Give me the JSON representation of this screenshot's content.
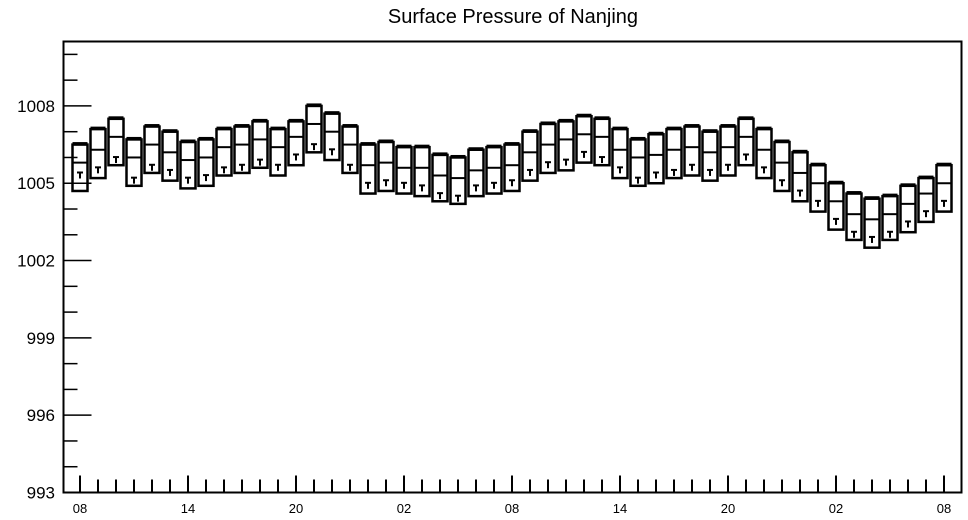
{
  "chart_data": {
    "type": "boxplot",
    "title": "Surface Pressure of Nanjing",
    "xlabel": "",
    "ylabel": "",
    "ylim": [
      993,
      1010.5
    ],
    "y_ticks": [
      "993",
      "996",
      "999",
      "1002",
      "1005",
      "1008"
    ],
    "x_tick_labels": [
      "08",
      "14",
      "20",
      "02",
      "08",
      "14",
      "20",
      "02",
      "08"
    ],
    "grid": false,
    "series": [
      {
        "x": 0,
        "top": 1006.5,
        "upper": 1005.8,
        "lower": 1004.7,
        "mark": 1005.3
      },
      {
        "x": 1,
        "top": 1007.1,
        "upper": 1006.3,
        "lower": 1005.2,
        "mark": 1005.5
      },
      {
        "x": 2,
        "top": 1007.5,
        "upper": 1006.8,
        "lower": 1005.7,
        "mark": 1005.9
      },
      {
        "x": 3,
        "top": 1006.7,
        "upper": 1006.0,
        "lower": 1004.9,
        "mark": 1005.1
      },
      {
        "x": 4,
        "top": 1007.2,
        "upper": 1006.5,
        "lower": 1005.4,
        "mark": 1005.6
      },
      {
        "x": 5,
        "top": 1007.0,
        "upper": 1006.2,
        "lower": 1005.1,
        "mark": 1005.4
      },
      {
        "x": 6,
        "top": 1006.6,
        "upper": 1005.9,
        "lower": 1004.8,
        "mark": 1005.1
      },
      {
        "x": 7,
        "top": 1006.7,
        "upper": 1006.0,
        "lower": 1004.9,
        "mark": 1005.2
      },
      {
        "x": 8,
        "top": 1007.1,
        "upper": 1006.4,
        "lower": 1005.3,
        "mark": 1005.5
      },
      {
        "x": 9,
        "top": 1007.2,
        "upper": 1006.5,
        "lower": 1005.4,
        "mark": 1005.6
      },
      {
        "x": 10,
        "top": 1007.4,
        "upper": 1006.7,
        "lower": 1005.6,
        "mark": 1005.8
      },
      {
        "x": 11,
        "top": 1007.1,
        "upper": 1006.4,
        "lower": 1005.3,
        "mark": 1005.6
      },
      {
        "x": 12,
        "top": 1007.4,
        "upper": 1006.8,
        "lower": 1005.7,
        "mark": 1006.0
      },
      {
        "x": 13,
        "top": 1008.0,
        "upper": 1007.3,
        "lower": 1006.2,
        "mark": 1006.4
      },
      {
        "x": 14,
        "top": 1007.7,
        "upper": 1007.0,
        "lower": 1005.9,
        "mark": 1006.2
      },
      {
        "x": 15,
        "top": 1007.2,
        "upper": 1006.5,
        "lower": 1005.4,
        "mark": 1005.6
      },
      {
        "x": 16,
        "top": 1006.5,
        "upper": 1005.7,
        "lower": 1004.6,
        "mark": 1004.9
      },
      {
        "x": 17,
        "top": 1006.6,
        "upper": 1005.8,
        "lower": 1004.7,
        "mark": 1005.0
      },
      {
        "x": 18,
        "top": 1006.4,
        "upper": 1005.6,
        "lower": 1004.6,
        "mark": 1004.9
      },
      {
        "x": 19,
        "top": 1006.4,
        "upper": 1005.6,
        "lower": 1004.5,
        "mark": 1004.8
      },
      {
        "x": 20,
        "top": 1006.1,
        "upper": 1005.3,
        "lower": 1004.3,
        "mark": 1004.5
      },
      {
        "x": 21,
        "top": 1006.0,
        "upper": 1005.2,
        "lower": 1004.2,
        "mark": 1004.4
      },
      {
        "x": 22,
        "top": 1006.3,
        "upper": 1005.5,
        "lower": 1004.5,
        "mark": 1004.8
      },
      {
        "x": 23,
        "top": 1006.4,
        "upper": 1005.6,
        "lower": 1004.6,
        "mark": 1004.9
      },
      {
        "x": 24,
        "top": 1006.5,
        "upper": 1005.7,
        "lower": 1004.7,
        "mark": 1005.0
      },
      {
        "x": 25,
        "top": 1007.0,
        "upper": 1006.2,
        "lower": 1005.1,
        "mark": 1005.4
      },
      {
        "x": 26,
        "top": 1007.3,
        "upper": 1006.5,
        "lower": 1005.4,
        "mark": 1005.7
      },
      {
        "x": 27,
        "top": 1007.4,
        "upper": 1006.7,
        "lower": 1005.5,
        "mark": 1005.8
      },
      {
        "x": 28,
        "top": 1007.6,
        "upper": 1006.9,
        "lower": 1005.8,
        "mark": 1006.1
      },
      {
        "x": 29,
        "top": 1007.5,
        "upper": 1006.8,
        "lower": 1005.7,
        "mark": 1005.9
      },
      {
        "x": 30,
        "top": 1007.1,
        "upper": 1006.3,
        "lower": 1005.2,
        "mark": 1005.5
      },
      {
        "x": 31,
        "top": 1006.7,
        "upper": 1006.0,
        "lower": 1004.9,
        "mark": 1005.1
      },
      {
        "x": 32,
        "top": 1006.9,
        "upper": 1006.1,
        "lower": 1005.0,
        "mark": 1005.3
      },
      {
        "x": 33,
        "top": 1007.1,
        "upper": 1006.3,
        "lower": 1005.2,
        "mark": 1005.4
      },
      {
        "x": 34,
        "top": 1007.2,
        "upper": 1006.4,
        "lower": 1005.3,
        "mark": 1005.6
      },
      {
        "x": 35,
        "top": 1007.0,
        "upper": 1006.2,
        "lower": 1005.1,
        "mark": 1005.4
      },
      {
        "x": 36,
        "top": 1007.2,
        "upper": 1006.4,
        "lower": 1005.3,
        "mark": 1005.6
      },
      {
        "x": 37,
        "top": 1007.5,
        "upper": 1006.8,
        "lower": 1005.7,
        "mark": 1006.0
      },
      {
        "x": 38,
        "top": 1007.1,
        "upper": 1006.3,
        "lower": 1005.2,
        "mark": 1005.5
      },
      {
        "x": 39,
        "top": 1006.6,
        "upper": 1005.8,
        "lower": 1004.7,
        "mark": 1005.0
      },
      {
        "x": 40,
        "top": 1006.2,
        "upper": 1005.4,
        "lower": 1004.3,
        "mark": 1004.6
      },
      {
        "x": 41,
        "top": 1005.7,
        "upper": 1005.0,
        "lower": 1003.9,
        "mark": 1004.2
      },
      {
        "x": 42,
        "top": 1005.0,
        "upper": 1004.3,
        "lower": 1003.2,
        "mark": 1003.5
      },
      {
        "x": 43,
        "top": 1004.6,
        "upper": 1003.8,
        "lower": 1002.8,
        "mark": 1003.0
      },
      {
        "x": 44,
        "top": 1004.4,
        "upper": 1003.6,
        "lower": 1002.5,
        "mark": 1002.8
      },
      {
        "x": 45,
        "top": 1004.5,
        "upper": 1003.8,
        "lower": 1002.8,
        "mark": 1003.0
      },
      {
        "x": 46,
        "top": 1004.9,
        "upper": 1004.2,
        "lower": 1003.1,
        "mark": 1003.4
      },
      {
        "x": 47,
        "top": 1005.2,
        "upper": 1004.6,
        "lower": 1003.5,
        "mark": 1003.8
      },
      {
        "x": 48,
        "top": 1005.7,
        "upper": 1005.0,
        "lower": 1003.9,
        "mark": 1004.2
      }
    ]
  }
}
